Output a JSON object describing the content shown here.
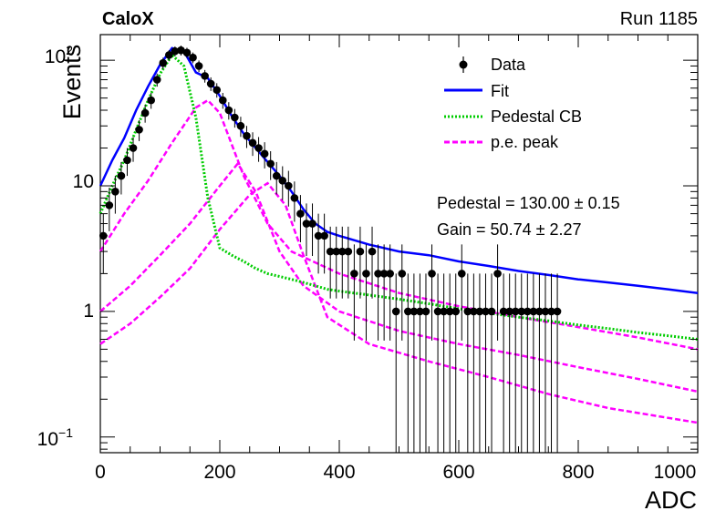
{
  "chart_data": {
    "type": "scatter",
    "title": "CaloX",
    "run_label": "Run 1185",
    "xlabel": "ADC",
    "ylabel": "Events",
    "xlim": [
      0,
      1000
    ],
    "ylim": [
      0.075,
      160
    ],
    "yscale": "log",
    "grid": false,
    "legend_position": "top-right",
    "x_ticks": [
      "0",
      "200",
      "400",
      "600",
      "800",
      "1000"
    ],
    "y_tick_labels": {
      "major_1": "10",
      "major_0": "1",
      "major_2_exponent": "2",
      "major_m1_exponent": "−1",
      "base": "10"
    },
    "legend": {
      "data": "Data",
      "fit": "Fit",
      "pedestal": "Pedestal CB",
      "pe_peak": "p.e. peak"
    },
    "fit_results": [
      {
        "label": "Pedestal",
        "value": "130.00",
        "pm": "±",
        "error": "0.15"
      },
      {
        "label": "Gain",
        "value": "50.74",
        "pm": "±",
        "error": "2.27"
      }
    ],
    "colors": {
      "data": "#000000",
      "fit": "#0000ff",
      "pedestal": "#00cc00",
      "pe_peak": "#ff00ff"
    },
    "data_points": {
      "x": [
        5,
        15,
        25,
        35,
        45,
        55,
        65,
        75,
        85,
        95,
        105,
        115,
        125,
        135,
        145,
        155,
        165,
        175,
        185,
        195,
        205,
        215,
        225,
        235,
        245,
        255,
        265,
        275,
        285,
        295,
        305,
        315,
        325,
        335,
        345,
        355,
        365,
        375,
        385,
        395,
        405,
        415,
        425,
        435,
        445,
        455,
        465,
        475,
        485,
        495,
        505,
        515,
        525,
        535,
        545,
        555,
        565,
        575,
        585,
        595,
        605,
        615,
        625,
        635,
        645,
        655,
        665,
        675,
        685,
        695,
        705,
        715,
        725,
        735,
        745,
        755,
        765
      ],
      "y": [
        4,
        7,
        9,
        12,
        16,
        20,
        28,
        38,
        48,
        70,
        95,
        110,
        118,
        120,
        115,
        105,
        90,
        75,
        65,
        58,
        48,
        40,
        35,
        30,
        25,
        22,
        20,
        18,
        15,
        12,
        11,
        10,
        8,
        6,
        5,
        5,
        4,
        4,
        3,
        3,
        3,
        3,
        2,
        3,
        2,
        3,
        2,
        2,
        2,
        1,
        2,
        1,
        1,
        1,
        1,
        2,
        1,
        1,
        1,
        1,
        2,
        1,
        1,
        1,
        1,
        1,
        2,
        1,
        1,
        1,
        1,
        1,
        1,
        1,
        1,
        1,
        1
      ]
    },
    "fit_curves": {
      "x": [
        0,
        20,
        40,
        60,
        80,
        100,
        120,
        140,
        160,
        180,
        200,
        220,
        240,
        260,
        280,
        300,
        320,
        340,
        360,
        380,
        400,
        450,
        500,
        550,
        600,
        650,
        700,
        750,
        800,
        850,
        900,
        950,
        1000
      ],
      "fit": [
        10,
        16,
        24,
        40,
        62,
        92,
        125,
        118,
        80,
        72,
        52,
        36,
        26,
        20,
        15.5,
        12,
        9,
        6.5,
        5,
        4.3,
        4,
        3.4,
        3,
        2.8,
        2.5,
        2.3,
        2.1,
        1.95,
        1.8,
        1.7,
        1.6,
        1.5,
        1.4
      ],
      "pedestal": [
        6,
        10,
        16,
        28,
        48,
        78,
        110,
        90,
        35,
        8,
        3.2,
        2.8,
        2.5,
        2.2,
        2,
        1.9,
        1.8,
        1.7,
        1.6,
        1.5,
        1.45,
        1.35,
        1.25,
        1.15,
        1.05,
        0.97,
        0.9,
        0.84,
        0.78,
        0.73,
        0.68,
        0.64,
        0.6
      ],
      "pe_peaks": [
        {
          "x": [
            0,
            40,
            80,
            120,
            160,
            180,
            200,
            240,
            280,
            320,
            400,
            500,
            600,
            700,
            800,
            900,
            1000
          ],
          "y": [
            3,
            6,
            11,
            22,
            42,
            48,
            38,
            12,
            5,
            3,
            2,
            1.4,
            1.1,
            0.9,
            0.75,
            0.62,
            0.5
          ]
        },
        {
          "x": [
            0,
            50,
            100,
            150,
            200,
            230,
            260,
            300,
            340,
            400,
            500,
            600,
            700,
            800,
            900,
            1000
          ],
          "y": [
            1,
            1.6,
            2.8,
            5,
            10,
            15,
            9,
            3,
            1.6,
            1,
            0.7,
            0.55,
            0.45,
            0.36,
            0.29,
            0.23
          ]
        },
        {
          "x": [
            0,
            50,
            100,
            150,
            200,
            250,
            280,
            310,
            340,
            380,
            450,
            550,
            650,
            750,
            850,
            1000
          ],
          "y": [
            0.55,
            0.8,
            1.3,
            2.2,
            4.5,
            8.5,
            10.5,
            7,
            2.8,
            0.9,
            0.55,
            0.4,
            0.3,
            0.22,
            0.17,
            0.13
          ]
        }
      ]
    }
  }
}
